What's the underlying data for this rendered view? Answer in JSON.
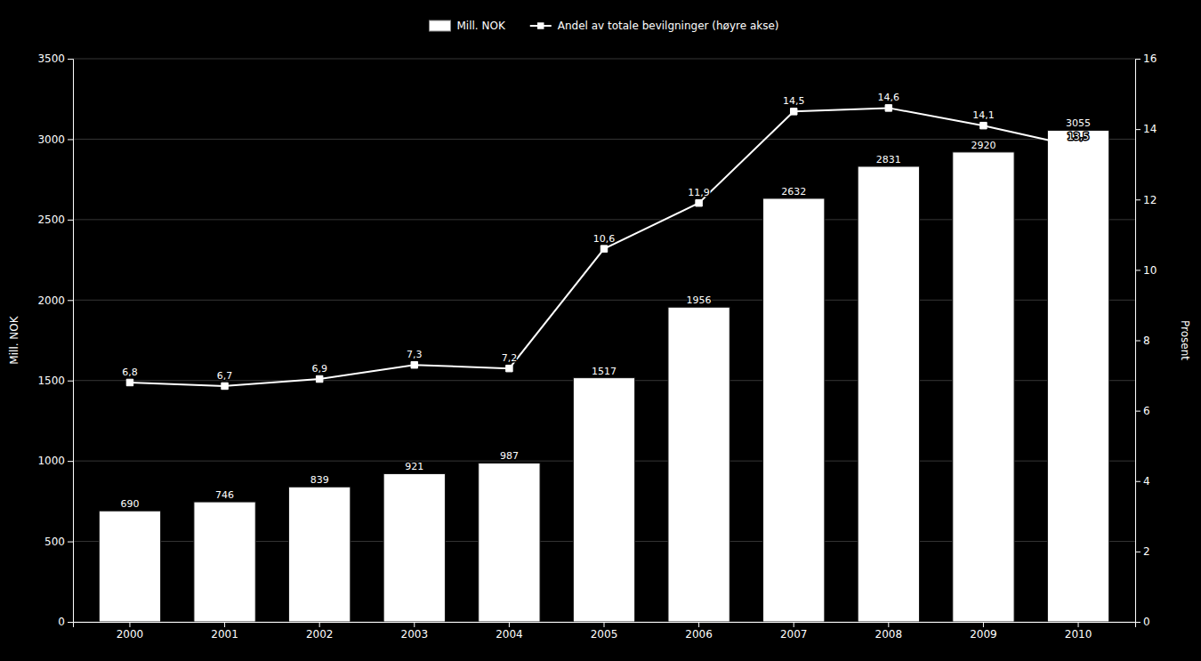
{
  "chart_data": {
    "type": "bar",
    "categories": [
      "2000",
      "2001",
      "2002",
      "2003",
      "2004",
      "2005",
      "2006",
      "2007",
      "2008",
      "2009",
      "2010"
    ],
    "ylabel": "Mill. NOK",
    "y2label": "Prosent",
    "ylim": [
      0,
      3500
    ],
    "yticks": [
      0,
      500,
      1000,
      1500,
      2000,
      2500,
      3000,
      3500
    ],
    "y2lim": [
      0,
      16
    ],
    "y2ticks": [
      0,
      2,
      4,
      6,
      8,
      10,
      12,
      14,
      16
    ],
    "grid": true,
    "legend": "top",
    "data_labels": true,
    "series": [
      {
        "name": "Mill. NOK",
        "type": "bar",
        "color": "#ffffff",
        "values": [
          690,
          746,
          839,
          921,
          987,
          1517,
          1956,
          2632,
          2831,
          2920,
          3055
        ]
      },
      {
        "name": "Andel av totale bevilgninger (høyre akse)",
        "type": "line",
        "axis": "y2",
        "color": "#ffffff",
        "marker": "square",
        "values": [
          6.8,
          6.7,
          6.9,
          7.3,
          7.2,
          10.6,
          11.9,
          14.5,
          14.6,
          14.1,
          13.5
        ],
        "value_labels": [
          "6,8",
          "6,7",
          "6,9",
          "7,3",
          "7,2",
          "10,6",
          "11,9",
          "14,5",
          "14,6",
          "14,1",
          "13,5"
        ]
      }
    ]
  }
}
